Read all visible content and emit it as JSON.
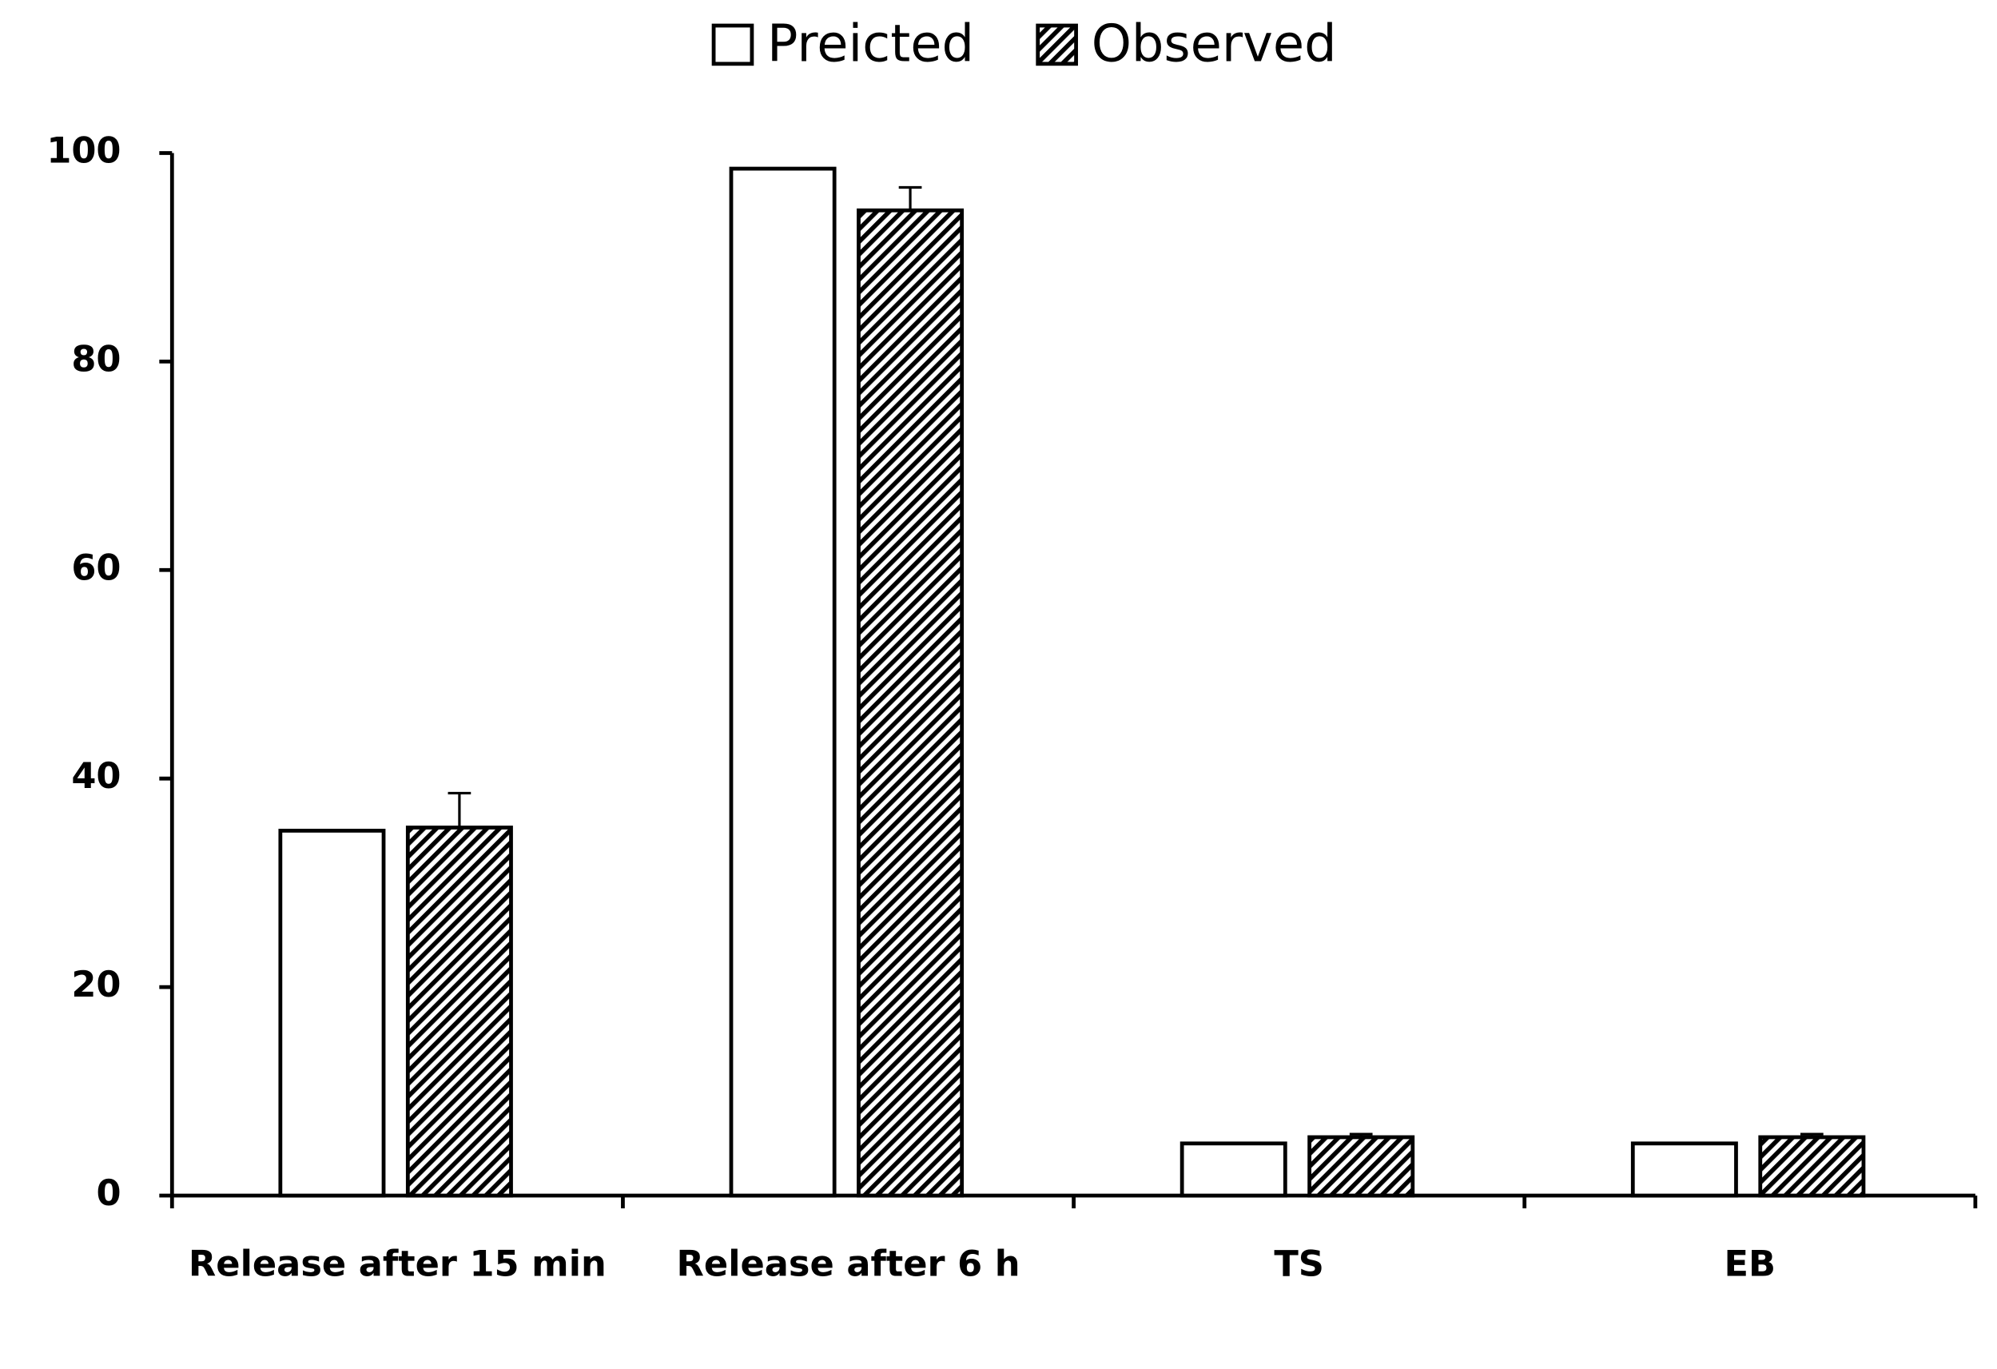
{
  "chart_data": {
    "type": "bar",
    "categories": [
      "Release after 15 min",
      "Release after 6 h",
      "TS",
      "EB"
    ],
    "series": [
      {
        "name": "Preicted",
        "color": "#ffffff",
        "values": [
          35,
          98.5,
          5,
          5
        ]
      },
      {
        "name": "Observed",
        "color": "#000000",
        "pattern": "hatch",
        "values": [
          35.3,
          94.5,
          5.6,
          5.6
        ],
        "errors": [
          3.3,
          2.2,
          0.3,
          0.3
        ]
      }
    ],
    "ylim": [
      0,
      100
    ],
    "yticks": [
      0,
      20,
      40,
      60,
      80,
      100
    ],
    "grid": false,
    "legend": "top"
  }
}
